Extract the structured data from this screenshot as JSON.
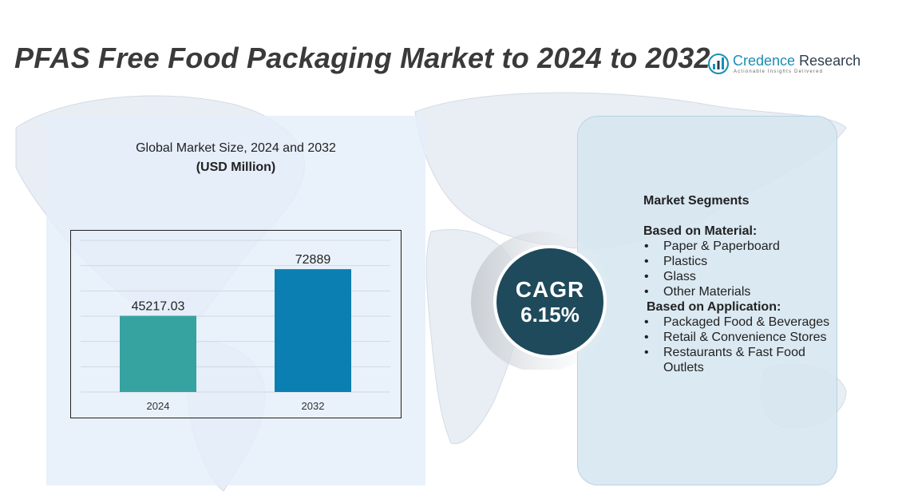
{
  "header": {
    "title": "PFAS Free Food Packaging Market to 2024 to 2032"
  },
  "logo": {
    "name_part1": "Credence",
    "name_part2": " Research",
    "tagline": "Actionable Insights Delivered",
    "icon": "bar-chart-logo-icon"
  },
  "chart_data": {
    "type": "bar",
    "title": "Global Market Size, 2024 and 2032",
    "subtitle": "(USD Million)",
    "categories": [
      "2024",
      "2032"
    ],
    "values": [
      45217.03,
      72889
    ],
    "value_labels": [
      "45217.03",
      "72889"
    ],
    "colors": [
      "#36a3a0",
      "#0b7fb2"
    ],
    "ylim": [
      0,
      90000
    ],
    "grid": true
  },
  "cagr": {
    "label": "CAGR",
    "value": "6.15%"
  },
  "segments": {
    "heading": "Market Segments",
    "material": {
      "title": "Based on Material:",
      "items": [
        "Paper & Paperboard",
        "Plastics",
        "Glass",
        "Other Materials"
      ]
    },
    "application": {
      "title": "Based on Application:",
      "items": [
        "Packaged Food & Beverages",
        "Retail & Convenience Stores",
        "Restaurants & Fast Food Outlets"
      ]
    }
  },
  "colors": {
    "title": "#3a3a3a",
    "cagr_circle": "#1e4a5c",
    "left_panel": "#e4eefa",
    "right_panel": "#d6e6f0"
  }
}
